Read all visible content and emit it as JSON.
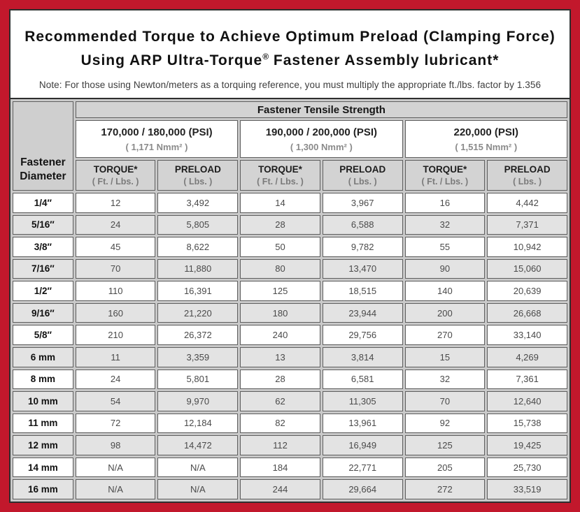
{
  "colors": {
    "frame_red": "#c2182c",
    "panel_border": "#2e2e2e"
  },
  "header": {
    "title_line1": "Recommended Torque to Achieve Optimum Preload (Clamping Force)",
    "title_line2_pre": "Using ARP Ultra-Torque",
    "title_line2_reg": "®",
    "title_line2_post": " Fastener Assembly lubricant*",
    "note": "Note: For those using Newton/meters as a torquing reference, you must multiply the appropriate ft./lbs. factor by 1.356"
  },
  "table": {
    "banner": "Fastener Tensile Strength",
    "row_header_line1": "Fastener",
    "row_header_line2": "Diameter",
    "groups": [
      {
        "psi": "170,000 / 180,000 (PSI)",
        "nmm": "( 1,171 Nmm² )"
      },
      {
        "psi": "190,000 / 200,000 (PSI)",
        "nmm": "( 1,300 Nmm² )"
      },
      {
        "psi": "220,000 (PSI)",
        "nmm": "( 1,515 Nmm² )"
      }
    ],
    "col_torque": "TORQUE*",
    "col_torque_unit": "( Ft. / Lbs. )",
    "col_preload": "PRELOAD",
    "col_preload_unit": "( Lbs. )",
    "rows": [
      {
        "diameter": "1/4″",
        "values": [
          "12",
          "3,492",
          "14",
          "3,967",
          "16",
          "4,442"
        ]
      },
      {
        "diameter": "5/16″",
        "values": [
          "24",
          "5,805",
          "28",
          "6,588",
          "32",
          "7,371"
        ]
      },
      {
        "diameter": "3/8″",
        "values": [
          "45",
          "8,622",
          "50",
          "9,782",
          "55",
          "10,942"
        ]
      },
      {
        "diameter": "7/16″",
        "values": [
          "70",
          "11,880",
          "80",
          "13,470",
          "90",
          "15,060"
        ]
      },
      {
        "diameter": "1/2″",
        "values": [
          "110",
          "16,391",
          "125",
          "18,515",
          "140",
          "20,639"
        ]
      },
      {
        "diameter": "9/16″",
        "values": [
          "160",
          "21,220",
          "180",
          "23,944",
          "200",
          "26,668"
        ]
      },
      {
        "diameter": "5/8″",
        "values": [
          "210",
          "26,372",
          "240",
          "29,756",
          "270",
          "33,140"
        ]
      },
      {
        "diameter": "6 mm",
        "values": [
          "11",
          "3,359",
          "13",
          "3,814",
          "15",
          "4,269"
        ]
      },
      {
        "diameter": "8 mm",
        "values": [
          "24",
          "5,801",
          "28",
          "6,581",
          "32",
          "7,361"
        ]
      },
      {
        "diameter": "10 mm",
        "values": [
          "54",
          "9,970",
          "62",
          "11,305",
          "70",
          "12,640"
        ]
      },
      {
        "diameter": "11 mm",
        "values": [
          "72",
          "12,184",
          "82",
          "13,961",
          "92",
          "15,738"
        ]
      },
      {
        "diameter": "12 mm",
        "values": [
          "98",
          "14,472",
          "112",
          "16,949",
          "125",
          "19,425"
        ]
      },
      {
        "diameter": "14 mm",
        "values": [
          "N/A",
          "N/A",
          "184",
          "22,771",
          "205",
          "25,730"
        ]
      },
      {
        "diameter": "16 mm",
        "values": [
          "N/A",
          "N/A",
          "244",
          "29,664",
          "272",
          "33,519"
        ]
      }
    ]
  }
}
